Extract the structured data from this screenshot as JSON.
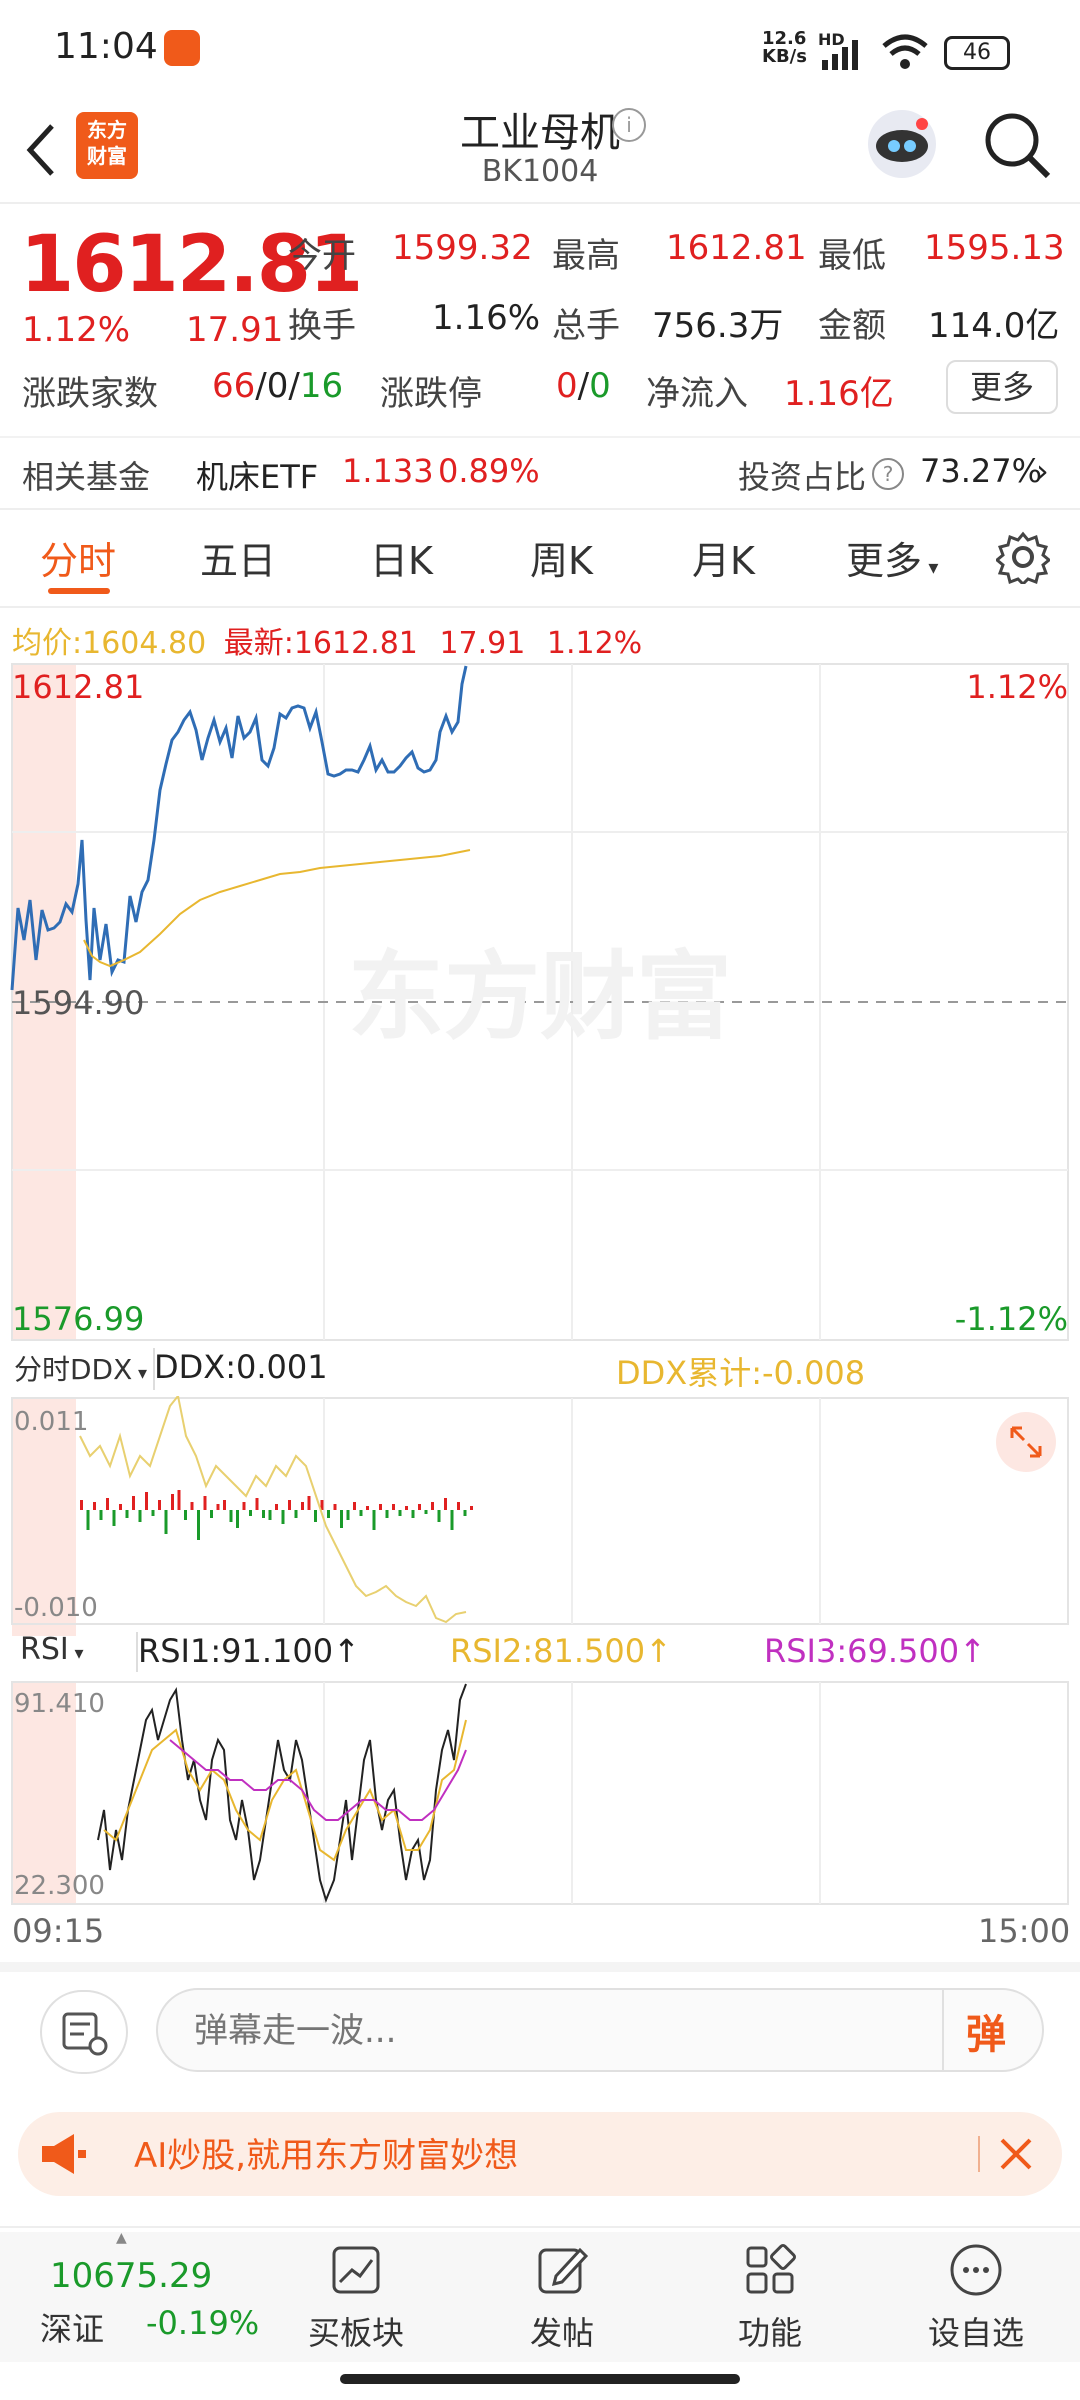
{
  "status": {
    "time": "11:04",
    "speed_top": "12.6",
    "speed_bottom": "KB/s",
    "network": "HD",
    "battery": "46"
  },
  "header": {
    "title": "工业母机",
    "code": "BK1004",
    "logo_line1": "东方",
    "logo_line2": "财富"
  },
  "quote": {
    "price": "1612.81",
    "pct": "1.12%",
    "change": "17.91",
    "open_label": "今开",
    "open": "1599.32",
    "high_label": "最高",
    "high": "1612.81",
    "low_label": "最低",
    "low": "1595.13",
    "turnover_label": "换手",
    "turnover": "1.16%",
    "volume_label": "总手",
    "volume": "756.3万",
    "amount_label": "金额",
    "amount": "114.0亿",
    "updown_label": "涨跌家数",
    "up": "66",
    "flat": "0",
    "down": "16",
    "limit_label": "涨跌停",
    "limit_up": "0",
    "limit_down": "0",
    "inflow_label": "净流入",
    "inflow": "1.16亿",
    "more_label": "更多"
  },
  "fund": {
    "label": "相关基金",
    "name": "机床ETF",
    "price": "1.133",
    "pct": "0.89%",
    "ratio_label": "投资占比",
    "ratio": "73.27%"
  },
  "tabs": [
    {
      "label": "分时"
    },
    {
      "label": "五日"
    },
    {
      "label": "日K"
    },
    {
      "label": "周K"
    },
    {
      "label": "月K"
    },
    {
      "label": "更多"
    }
  ],
  "chart_info": {
    "avg_label": "均价:",
    "avg": "1604.80",
    "latest_label": "最新:",
    "latest": "1612.81",
    "chg": "17.91",
    "pct": "1.12%"
  },
  "chart": {
    "top_price": "1612.81",
    "mid_price": "1594.90",
    "bottom_price": "1576.99",
    "top_pct": "1.12%",
    "bottom_pct": "-1.12%",
    "watermark": "东方财富"
  },
  "ddx": {
    "selector": "分时DDX",
    "value": "DDX:0.001",
    "cum": "DDX累计:-0.008",
    "top": "0.011",
    "bottom": "-0.010"
  },
  "rsi": {
    "selector": "RSI",
    "rsi1": "RSI1:91.100",
    "rsi2": "RSI2:81.500",
    "rsi3": "RSI3:69.500",
    "top": "91.410",
    "bottom": "22.300"
  },
  "time_axis": {
    "start": "09:15",
    "end": "15:00"
  },
  "danmaku": {
    "placeholder": "弹幕走一波...",
    "btn": "弹"
  },
  "banner": {
    "text": "AI炒股,就用东方财富妙想"
  },
  "bottom_nav": {
    "index_value": "10675.29",
    "index_name": "深证",
    "index_pct": "-0.19%",
    "items": [
      {
        "label": "买板块"
      },
      {
        "label": "发帖"
      },
      {
        "label": "功能"
      },
      {
        "label": "设自选"
      }
    ]
  },
  "colors": {
    "up": "#e02020",
    "down": "#1a9a2a",
    "price_line": "#2f6db5",
    "avg_line": "#e8b730",
    "rsi2": "#e8b730",
    "rsi3": "#c030c0",
    "accent": "#f05a1a"
  }
}
